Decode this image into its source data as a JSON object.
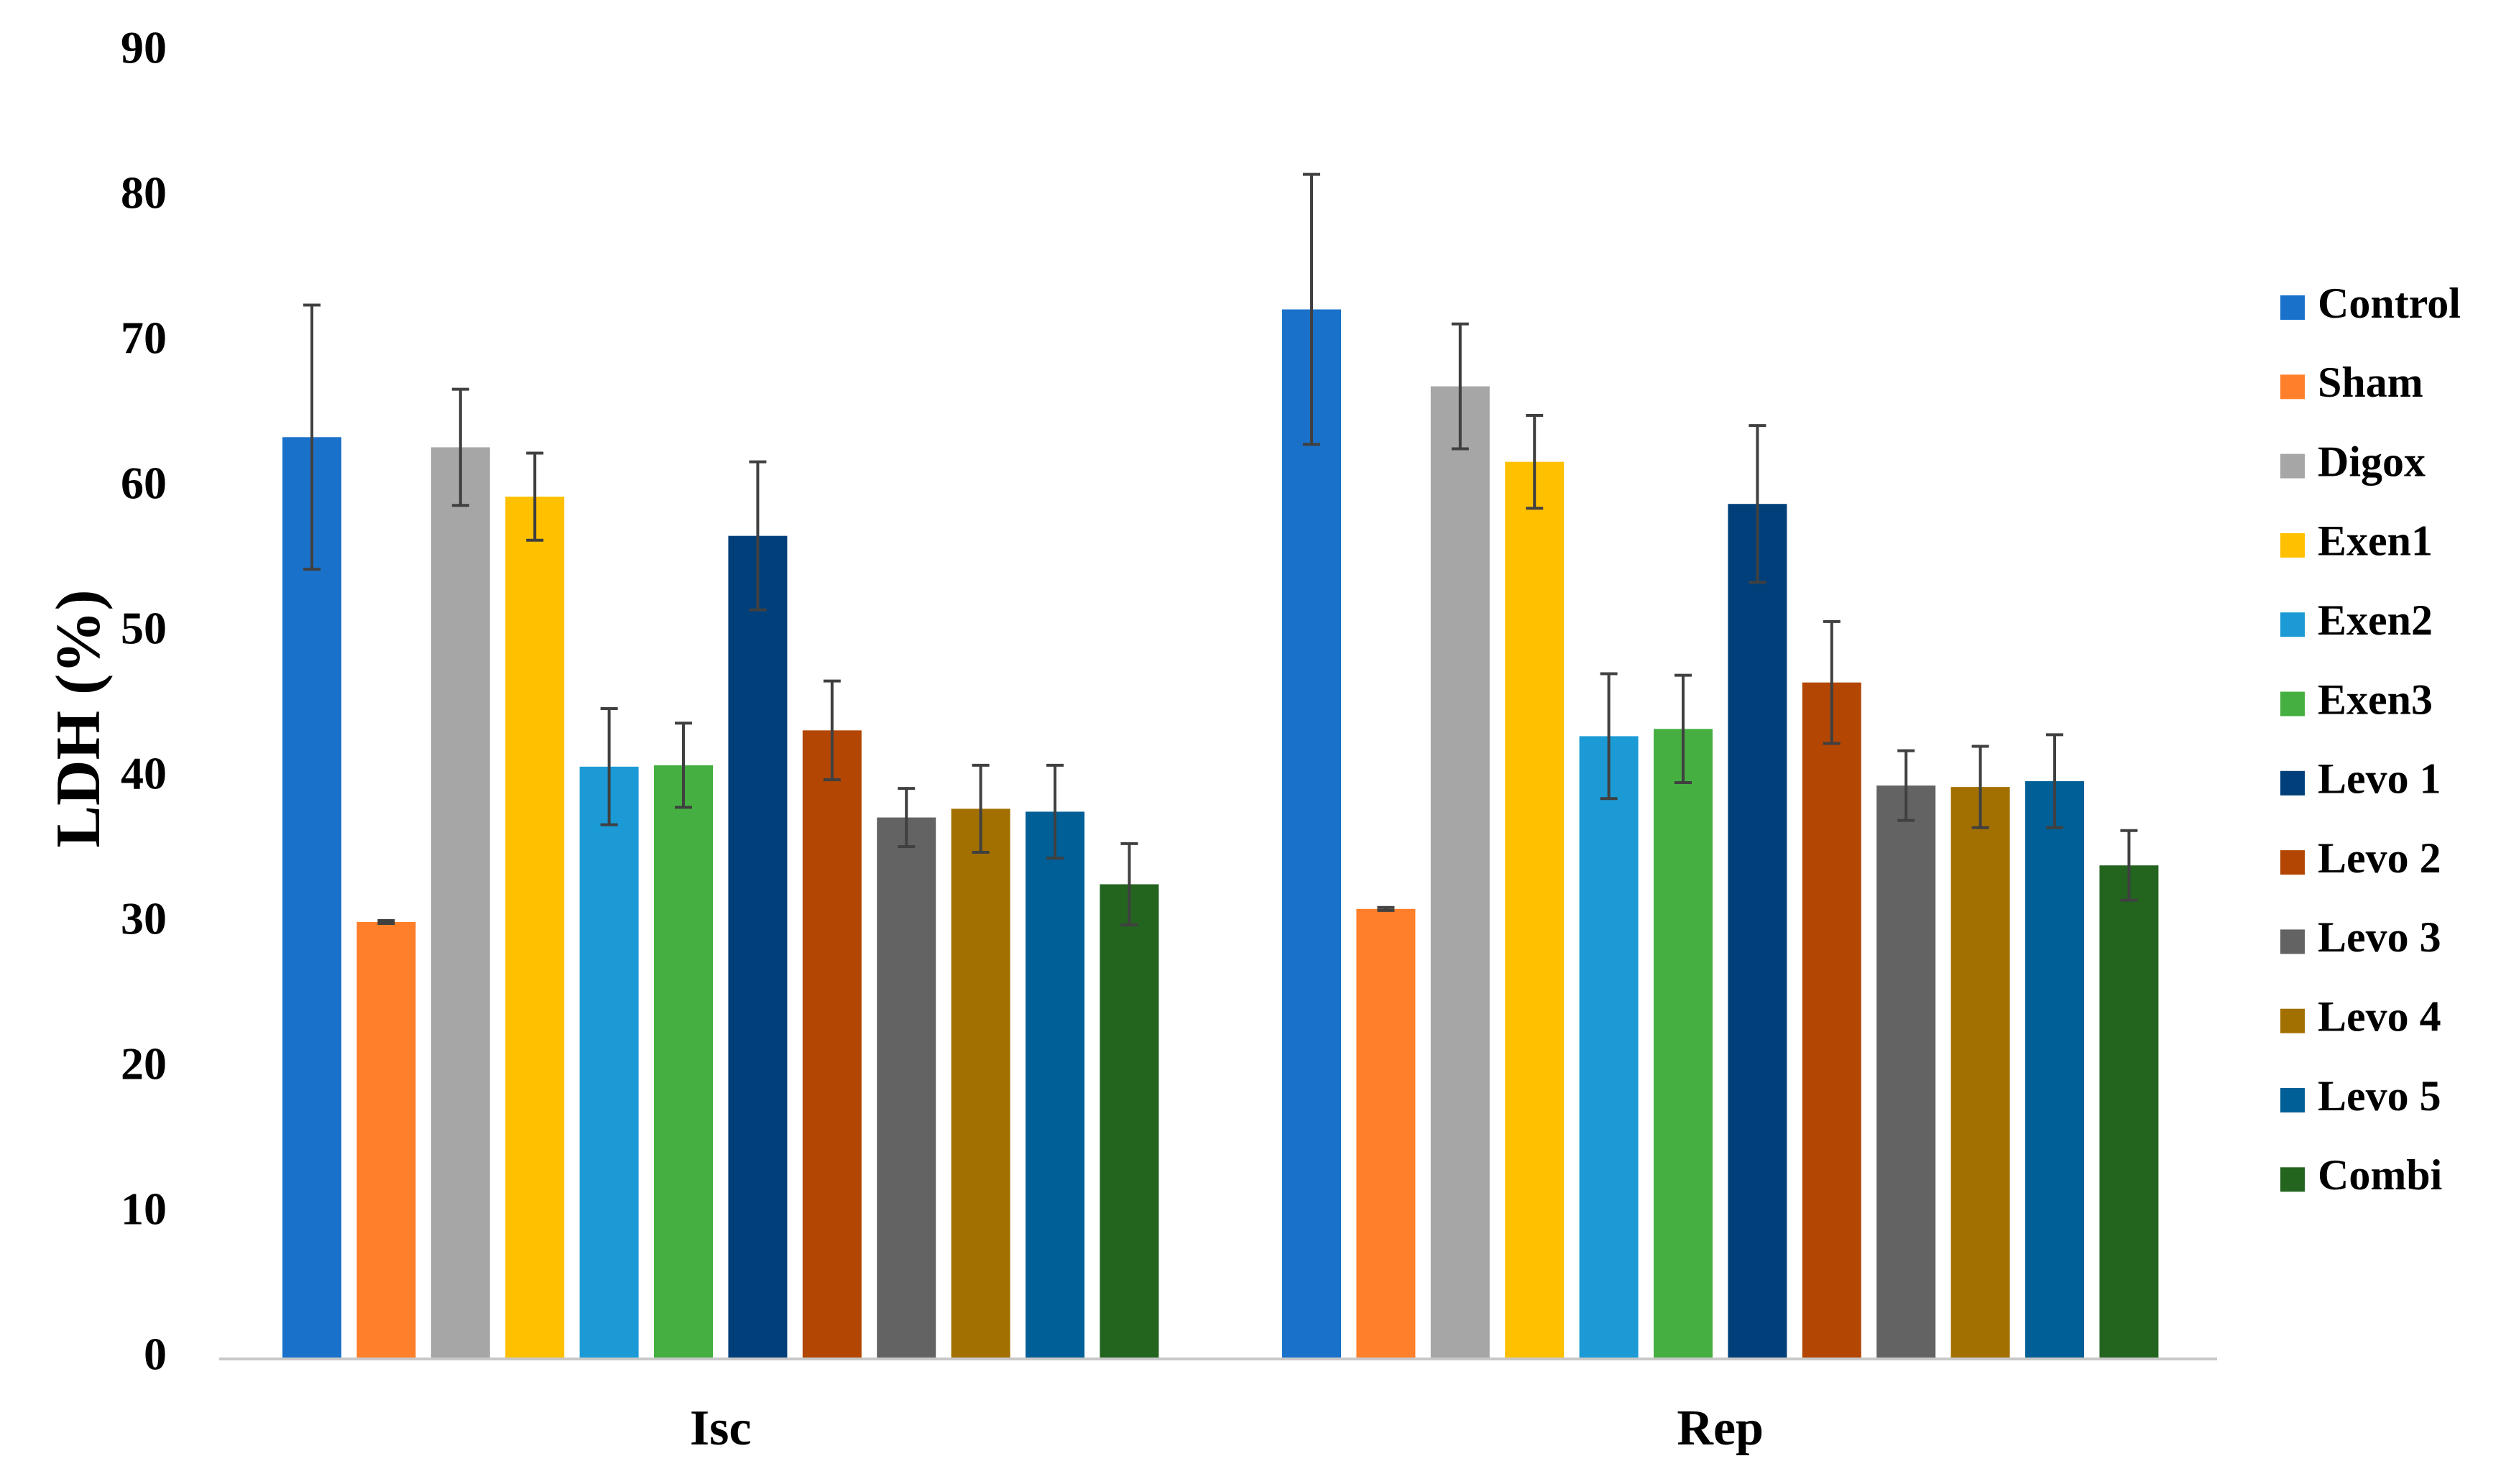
{
  "chart_data": {
    "type": "bar",
    "title": "",
    "xlabel": "",
    "ylabel": "LDH (%)",
    "ylim": [
      0,
      90
    ],
    "yticks": [
      0,
      10,
      20,
      30,
      40,
      50,
      60,
      70,
      80,
      90
    ],
    "categories": [
      "Isc",
      "Rep"
    ],
    "legend_position": "right",
    "grid": false,
    "series": [
      {
        "name": "Control",
        "color": "#1A71C9",
        "values": [
          63.5,
          72.3
        ],
        "errors": [
          9.1,
          9.3
        ]
      },
      {
        "name": "Sham",
        "color": "#FF7F2A",
        "values": [
          30.1,
          31.0
        ],
        "errors": [
          0.1,
          0.1
        ]
      },
      {
        "name": "Digox",
        "color": "#A6A6A6",
        "values": [
          62.8,
          67.0
        ],
        "errors": [
          4.0,
          4.3
        ]
      },
      {
        "name": "Exen1",
        "color": "#FFC000",
        "values": [
          59.4,
          61.8
        ],
        "errors": [
          3.0,
          3.2
        ]
      },
      {
        "name": "Exen2",
        "color": "#1B9AD6",
        "values": [
          40.8,
          42.9
        ],
        "errors": [
          4.0,
          4.3
        ]
      },
      {
        "name": "Exen3",
        "color": "#45B041",
        "values": [
          40.9,
          43.4
        ],
        "errors": [
          2.9,
          3.7
        ]
      },
      {
        "name": "Levo 1",
        "color": "#003F7A",
        "values": [
          56.7,
          58.9
        ],
        "errors": [
          5.1,
          5.4
        ]
      },
      {
        "name": "Levo 2",
        "color": "#B24602",
        "values": [
          43.3,
          46.6
        ],
        "errors": [
          3.4,
          4.2
        ]
      },
      {
        "name": "Levo 3",
        "color": "#636363",
        "values": [
          37.3,
          39.5
        ],
        "errors": [
          2.0,
          2.4
        ]
      },
      {
        "name": "Levo 4",
        "color": "#A27000",
        "values": [
          37.9,
          39.4
        ],
        "errors": [
          3.0,
          2.8
        ]
      },
      {
        "name": "Levo 5",
        "color": "#005F96",
        "values": [
          37.7,
          39.8
        ],
        "errors": [
          3.2,
          3.2
        ]
      },
      {
        "name": "Combi",
        "color": "#23641F",
        "values": [
          32.7,
          34.0
        ],
        "errors": [
          2.8,
          2.4
        ]
      }
    ]
  }
}
